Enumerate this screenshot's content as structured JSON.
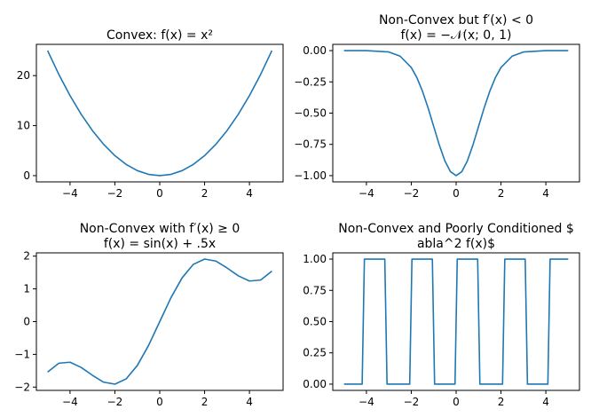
{
  "figure": {
    "color_line": "#1f77b4",
    "color_axes": "#000000",
    "color_background": "#ffffff"
  },
  "chart_data": [
    {
      "type": "line",
      "title_lines": [
        "Convex: f(x) = x²"
      ],
      "xlabel": "",
      "ylabel": "",
      "xlim": [
        -5.5,
        5.5
      ],
      "ylim": [
        -1.25,
        26.25
      ],
      "xticks": [
        -4,
        -2,
        0,
        2,
        4
      ],
      "xtick_labels": [
        "−4",
        "−2",
        "0",
        "2",
        "4"
      ],
      "yticks": [
        0,
        10,
        20
      ],
      "ytick_labels": [
        "0",
        "10",
        "20"
      ],
      "grid": false,
      "series": [
        {
          "x": [
            -5,
            -4.5,
            -4,
            -3.5,
            -3,
            -2.5,
            -2,
            -1.5,
            -1,
            -0.5,
            0,
            0.5,
            1,
            1.5,
            2,
            2.5,
            3,
            3.5,
            4,
            4.5,
            5
          ],
          "y": [
            25,
            20.25,
            16,
            12.25,
            9,
            6.25,
            4,
            2.25,
            1,
            0.25,
            0,
            0.25,
            1,
            2.25,
            4,
            6.25,
            9,
            12.25,
            16,
            20.25,
            25
          ]
        }
      ]
    },
    {
      "type": "line",
      "title_lines": [
        "Non-Convex but f′(x) < 0",
        "f(x) = −𝒩(x; 0, 1)"
      ],
      "xlabel": "",
      "ylabel": "",
      "xlim": [
        -5.5,
        5.5
      ],
      "ylim": [
        -1.05,
        0.05
      ],
      "xticks": [
        -4,
        -2,
        0,
        2,
        4
      ],
      "xtick_labels": [
        "−4",
        "−2",
        "0",
        "2",
        "4"
      ],
      "yticks": [
        0,
        -0.25,
        -0.5,
        -0.75,
        -1
      ],
      "ytick_labels": [
        "0.00",
        "−0.25",
        "−0.50",
        "−0.75",
        "−1.00"
      ],
      "grid": false,
      "series": [
        {
          "x": [
            -5,
            -4,
            -3,
            -2.5,
            -2,
            -1.75,
            -1.5,
            -1.25,
            -1,
            -0.75,
            -0.5,
            -0.25,
            0,
            0.25,
            0.5,
            0.75,
            1,
            1.25,
            1.5,
            1.75,
            2,
            2.5,
            3,
            4,
            5
          ],
          "y": [
            0,
            0,
            -0.011,
            -0.044,
            -0.135,
            -0.216,
            -0.325,
            -0.458,
            -0.607,
            -0.755,
            -0.882,
            -0.969,
            -1,
            -0.969,
            -0.882,
            -0.755,
            -0.607,
            -0.458,
            -0.325,
            -0.216,
            -0.135,
            -0.044,
            -0.011,
            0,
            0
          ]
        }
      ]
    },
    {
      "type": "line",
      "title_lines": [
        "Non-Convex with f′(x) ≥ 0",
        "f(x) = sin(x) + .5x"
      ],
      "xlabel": "",
      "ylabel": "",
      "xlim": [
        -5.5,
        5.5
      ],
      "ylim": [
        -2.1,
        2.1
      ],
      "xticks": [
        -4,
        -2,
        0,
        2,
        4
      ],
      "xtick_labels": [
        "−4",
        "−2",
        "0",
        "2",
        "4"
      ],
      "yticks": [
        2,
        1,
        0,
        -1,
        -2
      ],
      "ytick_labels": [
        "2",
        "1",
        "0",
        "−1",
        "−2"
      ],
      "grid": false,
      "series": [
        {
          "x": [
            -5,
            -4.5,
            -4,
            -3.5,
            -3,
            -2.5,
            -2,
            -1.5,
            -1,
            -0.5,
            0,
            0.5,
            1,
            1.5,
            2,
            2.5,
            3,
            3.5,
            4,
            4.5,
            5
          ],
          "y": [
            -1.54,
            -1.27,
            -1.24,
            -1.4,
            -1.64,
            -1.85,
            -1.91,
            -1.75,
            -1.34,
            -0.73,
            0,
            0.73,
            1.34,
            1.75,
            1.91,
            1.85,
            1.64,
            1.4,
            1.24,
            1.27,
            1.54
          ]
        }
      ]
    },
    {
      "type": "line",
      "title_lines": [
        "Non-Convex and Poorly Conditioned $",
        "abla^2 f(x)$"
      ],
      "xlabel": "",
      "ylabel": "",
      "xlim": [
        -5.5,
        5.5
      ],
      "ylim": [
        -0.05,
        1.05
      ],
      "xticks": [
        -4,
        -2,
        0,
        2,
        4
      ],
      "xtick_labels": [
        "−4",
        "−2",
        "0",
        "2",
        "4"
      ],
      "yticks": [
        1,
        0.75,
        0.5,
        0.25,
        0
      ],
      "ytick_labels": [
        "1.00",
        "0.75",
        "0.50",
        "0.25",
        "0.00"
      ],
      "grid": false,
      "series": [
        {
          "x": [
            -5,
            -4.19,
            -4.09,
            -3.18,
            -3.08,
            -2.07,
            -1.97,
            -1.06,
            -0.96,
            -0.05,
            0.05,
            0.96,
            1.06,
            2.07,
            2.17,
            3.08,
            3.18,
            4.09,
            4.19,
            5
          ],
          "y": [
            0,
            0,
            1,
            1,
            0,
            0,
            1,
            1,
            0,
            0,
            1,
            1,
            0,
            0,
            1,
            1,
            0,
            0,
            1,
            1
          ]
        }
      ]
    }
  ]
}
